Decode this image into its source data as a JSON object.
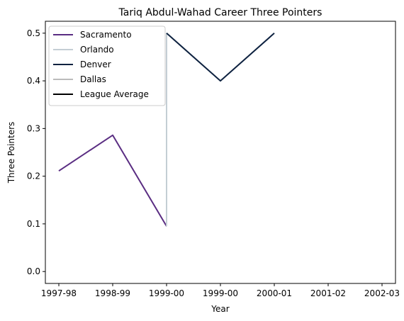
{
  "chart_data": {
    "type": "line",
    "title": "Tariq Abdul-Wahad Career Three Pointers",
    "xlabel": "Year",
    "ylabel": "Three Pointers",
    "x_categories": [
      "1997-98",
      "1998-99",
      "1999-00",
      "1999-00",
      "2000-01",
      "2001-02",
      "2002-03"
    ],
    "xlim": [
      -0.25,
      6.25
    ],
    "ylim": [
      -0.025,
      0.525
    ],
    "yticks": [
      0.0,
      0.1,
      0.2,
      0.3,
      0.4,
      0.5
    ],
    "ytick_labels": [
      "0.0",
      "0.1",
      "0.2",
      "0.3",
      "0.4",
      "0.5"
    ],
    "legend_position": "upper-left",
    "grid": false,
    "series": [
      {
        "name": "Sacramento",
        "color": "#5a2d82",
        "x": [
          0,
          1,
          2
        ],
        "y": [
          0.211,
          0.286,
          0.095
        ]
      },
      {
        "name": "Orlando",
        "color": "#c4ced4",
        "x": [
          2,
          2
        ],
        "y": [
          0.095,
          0.5
        ]
      },
      {
        "name": "Denver",
        "color": "#0e2240",
        "x": [
          2,
          3,
          4
        ],
        "y": [
          0.5,
          0.4,
          0.5
        ]
      },
      {
        "name": "Dallas",
        "color": "#bbbbbb",
        "x": [],
        "y": []
      },
      {
        "name": "League Average",
        "color": "#000000",
        "x": [],
        "y": []
      }
    ]
  }
}
